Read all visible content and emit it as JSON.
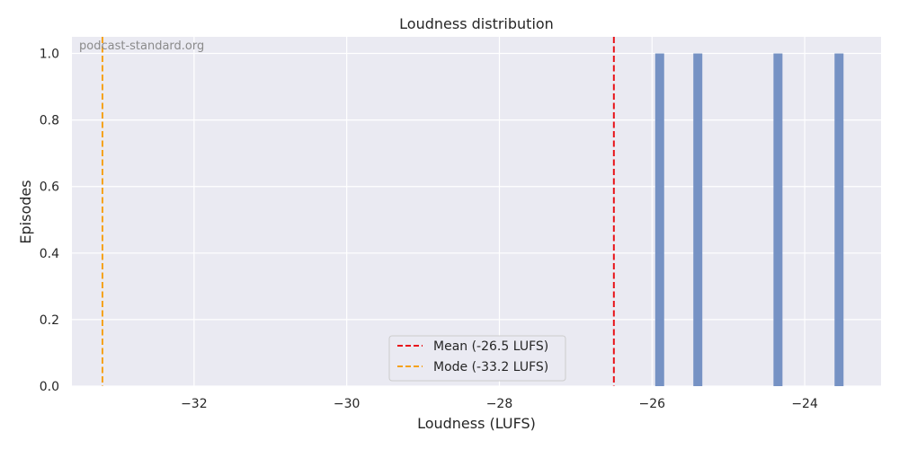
{
  "chart_data": {
    "type": "bar",
    "title": "Loudness distribution",
    "xlabel": "Loudness (LUFS)",
    "ylabel": "Episodes",
    "xlim": [
      -33.6,
      -23.0
    ],
    "ylim": [
      0,
      1.05
    ],
    "x_ticks": [
      -32,
      -30,
      -28,
      -26,
      -24
    ],
    "x_tick_labels": [
      "−32",
      "−30",
      "−28",
      "−26",
      "−24"
    ],
    "y_ticks": [
      0,
      0.2,
      0.4,
      0.6,
      0.8,
      1.0
    ],
    "y_tick_labels": [
      "0.0",
      "0.2",
      "0.4",
      "0.6",
      "0.8",
      "1.0"
    ],
    "bars": [
      {
        "x": -25.9,
        "value": 1
      },
      {
        "x": -25.4,
        "value": 1
      },
      {
        "x": -24.35,
        "value": 1
      },
      {
        "x": -23.55,
        "value": 1
      }
    ],
    "bar_color": "#7692c4",
    "reference_lines": [
      {
        "label": "Mean (-26.5 LUFS)",
        "x": -26.5,
        "color": "#e8141a"
      },
      {
        "label": "Mode (-33.2 LUFS)",
        "x": -33.2,
        "color": "#f5a21b"
      }
    ],
    "legend_position": "bottom-center",
    "grid": true,
    "watermark": "podcast-standard.org"
  }
}
